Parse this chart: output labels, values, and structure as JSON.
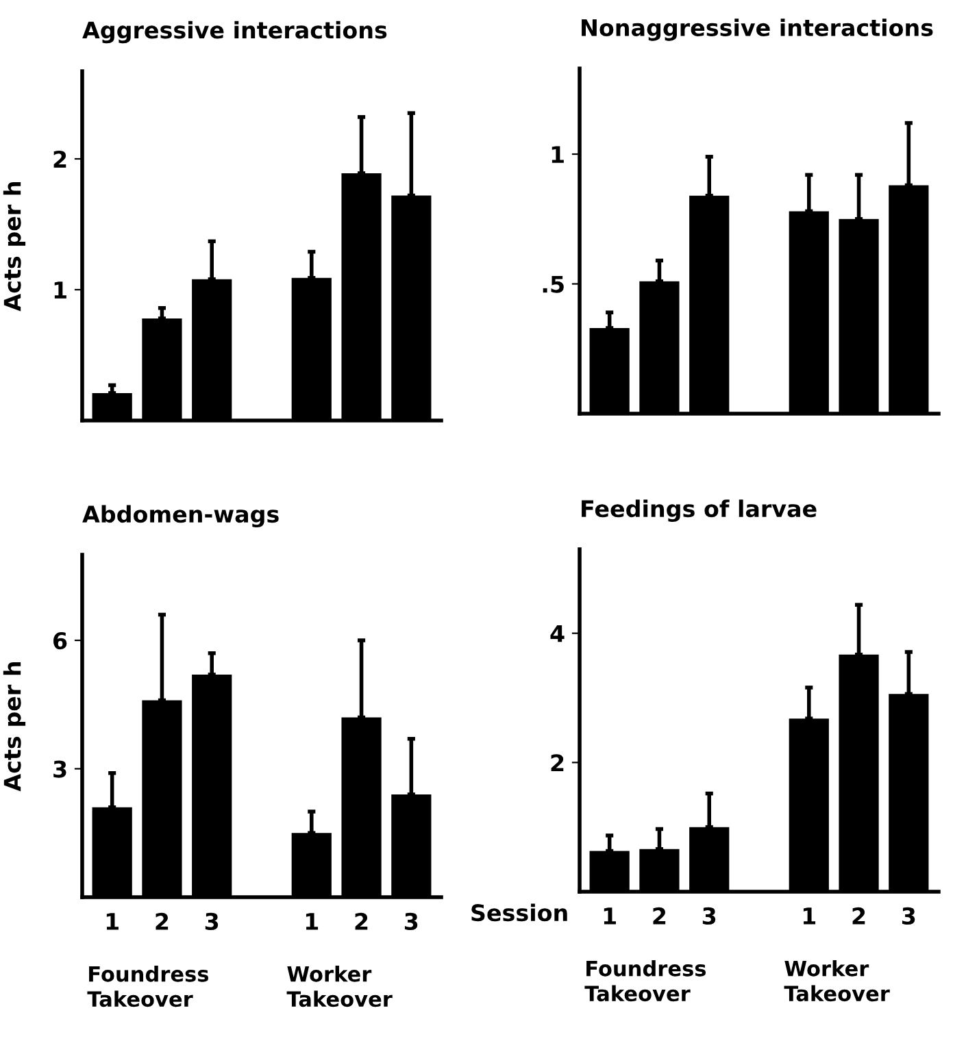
{
  "chart_data": [
    {
      "type": "bar",
      "title": "Aggressive interactions",
      "ylabel": "Acts per h",
      "categories": [
        "1",
        "2",
        "3",
        null,
        "1",
        "2",
        "3"
      ],
      "tick_labels": "y",
      "grid": false,
      "legend": false,
      "series": [
        {
          "color": "#000000",
          "values": [
            0.21,
            0.78,
            1.08,
            null,
            1.09,
            1.89,
            1.72
          ],
          "errors": [
            [
              0.21,
              0.27
            ],
            [
              0.78,
              0.86
            ],
            [
              1.08,
              1.37
            ],
            null,
            [
              1.09,
              1.29
            ],
            [
              1.89,
              2.32
            ],
            [
              1.72,
              2.35
            ]
          ]
        }
      ],
      "ylim": [
        0,
        2.67
      ],
      "yticks": [
        1,
        2
      ]
    },
    {
      "type": "bar",
      "title": "Nonaggressive interactions",
      "categories": [
        "1",
        "2",
        "3",
        null,
        "1",
        "2",
        "3"
      ],
      "tick_labels": "y",
      "grid": false,
      "legend": false,
      "series": [
        {
          "color": "#000000",
          "values": [
            0.33,
            0.51,
            0.84,
            null,
            0.78,
            0.75,
            0.88
          ],
          "errors": [
            [
              0.33,
              0.39
            ],
            [
              0.51,
              0.59
            ],
            [
              0.84,
              0.99
            ],
            null,
            [
              0.78,
              0.92
            ],
            [
              0.75,
              0.92
            ],
            [
              0.88,
              1.12
            ]
          ]
        }
      ],
      "ylim": [
        0,
        1.33
      ],
      "yticks": [
        {
          "value": 0.5,
          "label": ".5"
        },
        1
      ]
    },
    {
      "type": "bar",
      "title": "Abdomen-wags",
      "ylabel": "Acts per h",
      "categories": [
        "1",
        "2",
        "3",
        null,
        "1",
        "2",
        "3"
      ],
      "grid": false,
      "legend": false,
      "annotations": [
        "Foundress\nTakeover",
        "Worker\nTakeover"
      ],
      "series": [
        {
          "color": "#000000",
          "values": [
            2.1,
            4.6,
            5.2,
            null,
            1.5,
            4.2,
            2.4
          ],
          "errors": [
            [
              2.1,
              2.9
            ],
            [
              4.6,
              6.6
            ],
            [
              5.2,
              5.7
            ],
            null,
            [
              1.5,
              2.0
            ],
            [
              4.2,
              6.0
            ],
            [
              2.4,
              3.7
            ]
          ]
        }
      ],
      "ylim": [
        0,
        8
      ],
      "yticks": [
        3,
        6
      ]
    },
    {
      "type": "bar",
      "title": "Feedings of larvae",
      "xlabel": "Session",
      "categories": [
        "1",
        "2",
        "3",
        null,
        "1",
        "2",
        "3"
      ],
      "grid": false,
      "legend": false,
      "annotations": [
        "Foundress\nTakeover",
        "Worker\nTakeover"
      ],
      "series": [
        {
          "color": "#000000",
          "values": [
            0.63,
            0.66,
            1.0,
            null,
            2.68,
            3.67,
            3.06
          ],
          "errors": [
            [
              0.63,
              0.87
            ],
            [
              0.66,
              0.97
            ],
            [
              1.0,
              1.52
            ],
            null,
            [
              2.68,
              3.16
            ],
            [
              3.67,
              4.44
            ],
            [
              3.06,
              3.71
            ]
          ]
        }
      ],
      "ylim": [
        0,
        5.3
      ],
      "yticks": [
        2,
        4
      ]
    }
  ]
}
